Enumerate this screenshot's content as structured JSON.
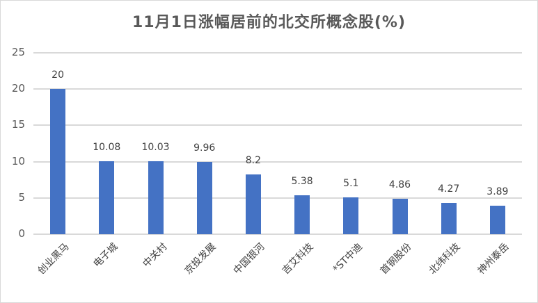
{
  "chart_data": {
    "type": "bar",
    "title": "11月1日涨幅居前的北交所概念股(%)",
    "xlabel": "",
    "ylabel": "",
    "ylim": [
      0,
      25
    ],
    "yticks": [
      0,
      5,
      10,
      15,
      20,
      25
    ],
    "grid": true,
    "legend": "none",
    "bar_color": "#4472c4",
    "categories": [
      "创业黑马",
      "电子城",
      "中关村",
      "京投发展",
      "中国银河",
      "吉艾科技",
      "*ST中迪",
      "首钢股份",
      "北纬科技",
      "神州泰岳"
    ],
    "values": [
      20,
      10.08,
      10.03,
      9.96,
      8.2,
      5.38,
      5.1,
      4.86,
      4.27,
      3.89
    ],
    "value_labels": [
      "20",
      "10.08",
      "10.03",
      "9.96",
      "8.2",
      "5.38",
      "5.1",
      "4.86",
      "4.27",
      "3.89"
    ]
  }
}
